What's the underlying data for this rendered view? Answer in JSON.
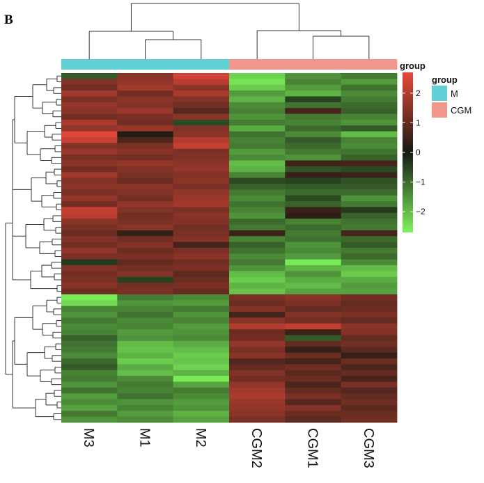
{
  "panel_label": "B",
  "chart_data": {
    "type": "heatmap",
    "title": "",
    "columns": [
      "M3",
      "M1",
      "M2",
      "CGM2",
      "CGM1",
      "CGM3"
    ],
    "column_groups": [
      "M",
      "M",
      "M",
      "CGM",
      "CGM",
      "CGM"
    ],
    "annotation_label": "group",
    "groups": [
      {
        "name": "M",
        "color": "#5ed0d6"
      },
      {
        "name": "CGM",
        "color": "#f0968a"
      }
    ],
    "legend_title": "group",
    "color_scale": {
      "min": -2.7,
      "max": 2.7,
      "low_color": "#7ef35b",
      "mid_color": "#151a12",
      "high_color": "#e8483a",
      "ticks": [
        2,
        1,
        0,
        -1,
        -2
      ],
      "tick_labels": [
        "2",
        "1",
        "0",
        "−1",
        "−2"
      ]
    },
    "row_count": 60,
    "cluster_sizes": [
      38,
      22
    ],
    "values": [
      [
        -0.8,
        1.5,
        2.4,
        -2.3,
        -1.5,
        -1.2
      ],
      [
        1.4,
        1.6,
        2.1,
        -2.5,
        -1.3,
        -1.6
      ],
      [
        1.2,
        1.8,
        1.5,
        -2.2,
        -1.6,
        -1.1
      ],
      [
        1.8,
        1.2,
        1.9,
        -1.6,
        -1.9,
        -1.4
      ],
      [
        1.3,
        1.5,
        1.4,
        -1.9,
        -0.5,
        -1.2
      ],
      [
        1.6,
        1.4,
        1.2,
        -1.4,
        -1.1,
        -1.0
      ],
      [
        1.5,
        1.7,
        0.8,
        -1.3,
        0.6,
        -0.9
      ],
      [
        1.2,
        1.3,
        1.5,
        -1.5,
        -1.2,
        -1.3
      ],
      [
        1.9,
        1.2,
        -0.6,
        -1.2,
        -1.3,
        -1.5
      ],
      [
        1.6,
        1.7,
        1.4,
        -1.8,
        -1.0,
        -0.8
      ],
      [
        2.6,
        0.2,
        1.5,
        -1.1,
        -1.4,
        -2.0
      ],
      [
        2.3,
        0.7,
        2.0,
        -1.3,
        -0.8,
        -1.3
      ],
      [
        1.4,
        1.3,
        2.2,
        -1.2,
        -1.0,
        -1.4
      ],
      [
        1.7,
        1.5,
        1.3,
        -1.6,
        -1.2,
        -1.1
      ],
      [
        1.3,
        1.2,
        1.4,
        -1.4,
        -1.5,
        -0.9
      ],
      [
        1.5,
        1.6,
        1.5,
        -2.0,
        0.5,
        0.6
      ],
      [
        1.2,
        1.4,
        1.6,
        -1.9,
        -0.7,
        -0.6
      ],
      [
        1.8,
        1.3,
        1.4,
        -1.3,
        0.4,
        0.5
      ],
      [
        1.4,
        1.1,
        1.5,
        -0.6,
        -0.5,
        -0.7
      ],
      [
        1.5,
        1.5,
        1.3,
        -0.9,
        -0.8,
        -0.8
      ],
      [
        1.3,
        1.4,
        1.6,
        -1.2,
        -1.0,
        -1.0
      ],
      [
        1.6,
        1.2,
        1.7,
        -1.4,
        -0.6,
        -1.5
      ],
      [
        1.2,
        1.6,
        1.8,
        -1.1,
        -0.9,
        -1.2
      ],
      [
        2.2,
        1.4,
        1.3,
        -1.3,
        0.5,
        -0.4
      ],
      [
        2.1,
        1.2,
        1.5,
        -1.5,
        0.3,
        -0.9
      ],
      [
        1.5,
        1.3,
        1.4,
        -1.0,
        -1.3,
        -1.1
      ],
      [
        1.3,
        1.5,
        1.2,
        -1.2,
        -1.0,
        -1.2
      ],
      [
        1.1,
        0.4,
        1.3,
        0.5,
        -1.2,
        0.6
      ],
      [
        1.4,
        1.2,
        1.4,
        -1.3,
        -1.1,
        -1.0
      ],
      [
        1.2,
        1.4,
        0.6,
        -0.9,
        -1.5,
        -0.8
      ],
      [
        1.6,
        1.1,
        1.3,
        -1.1,
        -1.4,
        -1.2
      ],
      [
        1.3,
        1.3,
        1.5,
        -1.4,
        -1.6,
        -1.0
      ],
      [
        -0.4,
        1.0,
        1.2,
        -1.2,
        -2.6,
        -1.4
      ],
      [
        1.4,
        1.2,
        1.3,
        -1.5,
        -1.9,
        -2.0
      ],
      [
        1.2,
        1.4,
        0.9,
        -2.0,
        -1.5,
        -2.2
      ],
      [
        1.3,
        -0.5,
        1.1,
        -2.2,
        -1.8,
        -1.8
      ],
      [
        1.5,
        1.2,
        1.3,
        -1.9,
        -2.0,
        -1.6
      ],
      [
        1.1,
        1.3,
        1.0,
        -2.1,
        -1.7,
        -1.7
      ],
      [
        -2.6,
        -1.2,
        -1.4,
        1.3,
        1.5,
        1.2
      ],
      [
        -2.4,
        -1.5,
        -1.6,
        1.1,
        1.3,
        1.0
      ],
      [
        -1.3,
        -1.3,
        -1.2,
        1.4,
        1.0,
        1.1
      ],
      [
        -1.5,
        -1.1,
        -1.5,
        0.6,
        1.4,
        1.3
      ],
      [
        -1.2,
        -1.4,
        -1.3,
        1.5,
        1.2,
        1.0
      ],
      [
        -1.4,
        -1.3,
        -1.6,
        2.0,
        2.2,
        1.5
      ],
      [
        -1.3,
        -1.6,
        -1.5,
        1.1,
        0.5,
        1.4
      ],
      [
        -0.9,
        -1.5,
        -1.4,
        1.2,
        -0.8,
        1.0
      ],
      [
        -1.1,
        -2.0,
        -1.8,
        1.6,
        1.0,
        1.2
      ],
      [
        -1.2,
        -2.1,
        -2.0,
        1.3,
        0.4,
        0.9
      ],
      [
        -1.4,
        -1.9,
        -2.2,
        1.5,
        1.1,
        0.4
      ],
      [
        -1.0,
        -2.2,
        -2.1,
        0.8,
        0.6,
        1.1
      ],
      [
        -0.8,
        -1.8,
        -2.3,
        1.0,
        1.2,
        0.7
      ],
      [
        -1.3,
        -2.0,
        -1.9,
        1.4,
        0.9,
        1.0
      ],
      [
        -1.2,
        -1.4,
        -2.6,
        1.2,
        1.1,
        0.6
      ],
      [
        -1.5,
        -1.2,
        -1.7,
        1.6,
        0.7,
        1.3
      ],
      [
        -1.1,
        -1.3,
        -1.2,
        1.8,
        1.0,
        0.8
      ],
      [
        -1.6,
        -1.1,
        -1.4,
        1.9,
        1.3,
        1.0
      ],
      [
        -1.4,
        -1.5,
        -1.6,
        1.7,
        0.8,
        1.2
      ],
      [
        -1.7,
        -1.3,
        -1.5,
        1.6,
        1.4,
        0.9
      ],
      [
        -1.2,
        -1.6,
        -1.9,
        1.5,
        1.1,
        1.1
      ],
      [
        -1.5,
        -1.4,
        -1.7,
        1.3,
        0.9,
        1.2
      ]
    ]
  }
}
